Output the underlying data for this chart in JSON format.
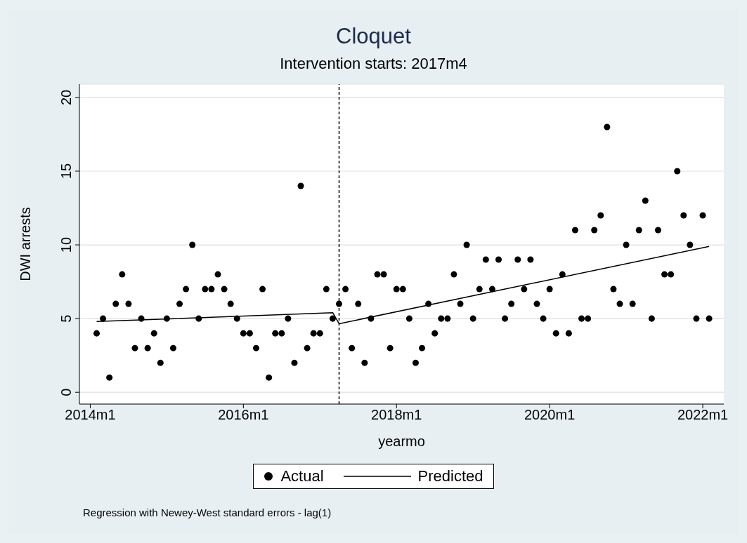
{
  "chart_data": {
    "type": "scatter",
    "title": "Cloquet",
    "subtitle": "Intervention starts: 2017m4",
    "xlabel": "yearmo",
    "ylabel": "DWI arrests",
    "annotations": [
      "Regression with Newey-West standard errors - lag(1)"
    ],
    "x": [
      "2014-02",
      "2014-03",
      "2014-04",
      "2014-05",
      "2014-06",
      "2014-07",
      "2014-08",
      "2014-09",
      "2014-10",
      "2014-11",
      "2014-12",
      "2015-01",
      "2015-02",
      "2015-03",
      "2015-04",
      "2015-05",
      "2015-06",
      "2015-07",
      "2015-08",
      "2015-09",
      "2015-10",
      "2015-11",
      "2015-12",
      "2016-01",
      "2016-02",
      "2016-03",
      "2016-04",
      "2016-05",
      "2016-06",
      "2016-07",
      "2016-08",
      "2016-09",
      "2016-10",
      "2016-11",
      "2016-12",
      "2017-01",
      "2017-02",
      "2017-03",
      "2017-04",
      "2017-05",
      "2017-06",
      "2017-07",
      "2017-08",
      "2017-09",
      "2017-10",
      "2017-11",
      "2017-12",
      "2018-01",
      "2018-02",
      "2018-03",
      "2018-04",
      "2018-05",
      "2018-06",
      "2018-07",
      "2018-08",
      "2018-09",
      "2018-10",
      "2018-11",
      "2018-12",
      "2019-01",
      "2019-02",
      "2019-03",
      "2019-04",
      "2019-05",
      "2019-06",
      "2019-07",
      "2019-08",
      "2019-09",
      "2019-10",
      "2019-11",
      "2019-12",
      "2020-01",
      "2020-02",
      "2020-03",
      "2020-04",
      "2020-05",
      "2020-06",
      "2020-07",
      "2020-08",
      "2020-09",
      "2020-10",
      "2020-11",
      "2020-12",
      "2021-01",
      "2021-02",
      "2021-03",
      "2021-04",
      "2021-05",
      "2021-06",
      "2021-07",
      "2021-08",
      "2021-09",
      "2021-10",
      "2021-11",
      "2021-12",
      "2022-01",
      "2022-02"
    ],
    "series": [
      {
        "name": "Actual",
        "color": "#000000",
        "values": [
          4,
          5,
          1,
          6,
          8,
          6,
          3,
          5,
          3,
          4,
          2,
          5,
          3,
          6,
          7,
          10,
          5,
          7,
          7,
          8,
          7,
          6,
          5,
          4,
          4,
          3,
          7,
          1,
          4,
          4,
          5,
          2,
          14,
          3,
          4,
          4,
          7,
          5,
          6,
          7,
          3,
          6,
          2,
          5,
          8,
          8,
          3,
          7,
          7,
          5,
          2,
          3,
          6,
          4,
          5,
          5,
          8,
          6,
          10,
          5,
          7,
          9,
          7,
          9,
          5,
          6,
          9,
          7,
          9,
          6,
          5,
          7,
          4,
          8,
          4,
          11,
          5,
          5,
          11,
          12,
          18,
          7,
          6,
          10,
          6,
          11,
          13,
          5,
          11,
          8,
          8,
          15,
          12,
          10,
          5,
          12,
          5
        ]
      },
      {
        "name": "Predicted",
        "type": "line",
        "marker": "none",
        "color": "#000000",
        "x": [
          "2014-02",
          "2017-03",
          "2017-04",
          "2022-02"
        ],
        "values": [
          4.8,
          5.4,
          4.65,
          9.9
        ]
      }
    ],
    "xlim": [
      "2013-11-10",
      "2022-04-10"
    ],
    "xticks": [
      {
        "value": "2014-01",
        "label": "2014m1"
      },
      {
        "value": "2016-01",
        "label": "2016m1"
      },
      {
        "value": "2018-01",
        "label": "2018m1"
      },
      {
        "value": "2020-01",
        "label": "2020m1"
      },
      {
        "value": "2022-01",
        "label": "2022m1"
      }
    ],
    "ylim": [
      -0.8,
      20.9
    ],
    "yticks": [
      0,
      5,
      10,
      15,
      20
    ],
    "ref_lines": [
      {
        "axis": "x",
        "value": "2017-04",
        "line_style": "dashed",
        "color": "#000000"
      }
    ],
    "grid": "y",
    "legend": "bottom",
    "marker": "circle",
    "line_style": "solid"
  }
}
